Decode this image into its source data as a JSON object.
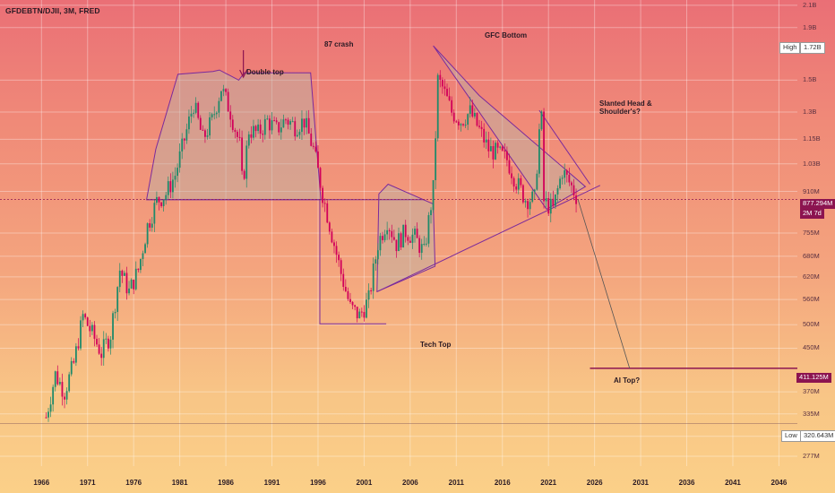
{
  "header": {
    "symbol_line": "GFDEBTN/DJII, 3M, FRED"
  },
  "annotations": {
    "double_top": "Double top",
    "crash_87": "87 crash",
    "gfc_bottom": "GFC Bottom",
    "slanted_line1": "Slanted Head &",
    "slanted_line2": "Shoulder's?",
    "tech_top": "Tech Top",
    "ai_top": "AI Top?"
  },
  "price_labels": {
    "high_label": "High",
    "high_value": "1.72B",
    "current_value": "877.294M",
    "current_countdown": "2M 7d",
    "target_value": "411.125M",
    "low_label": "Low",
    "low_value": "320.643M"
  },
  "colors": {
    "candle_up": "#1f8a6a",
    "candle_down": "#d1005a",
    "pattern_line": "#7b2a9c",
    "target_line": "#8c1450"
  },
  "chart_data": {
    "type": "candlestick",
    "title": "GFDEBTN/DJII, 3M, FRED",
    "y_scale": "log",
    "ylim": [
      265000000,
      2150000000
    ],
    "xlim": [
      1961.5,
      2048
    ],
    "x_ticks": [
      "1966",
      "1971",
      "1976",
      "1981",
      "1986",
      "1991",
      "1996",
      "2001",
      "2006",
      "2011",
      "2016",
      "2021",
      "2026",
      "2031",
      "2036",
      "2041",
      "2046"
    ],
    "y_ticks": [
      {
        "label": "2.1B",
        "value": 2100000000
      },
      {
        "label": "1.9B",
        "value": 1900000000
      },
      {
        "label": "1.5B",
        "value": 1500000000
      },
      {
        "label": "1.3B",
        "value": 1300000000
      },
      {
        "label": "1.15B",
        "value": 1150000000
      },
      {
        "label": "1.03B",
        "value": 1030000000
      },
      {
        "label": "910M",
        "value": 910000000
      },
      {
        "label": "755M",
        "value": 755000000
      },
      {
        "label": "680M",
        "value": 680000000
      },
      {
        "label": "620M",
        "value": 620000000
      },
      {
        "label": "560M",
        "value": 560000000
      },
      {
        "label": "500M",
        "value": 500000000
      },
      {
        "label": "450M",
        "value": 450000000
      },
      {
        "label": "370M",
        "value": 370000000
      },
      {
        "label": "335M",
        "value": 335000000
      },
      {
        "label": "303M",
        "value": 303000000
      },
      {
        "label": "277M",
        "value": 277000000
      }
    ],
    "series_approx": [
      [
        1966.5,
        330000000
      ],
      [
        1967.5,
        400000000
      ],
      [
        1968.5,
        370000000
      ],
      [
        1969.5,
        420000000
      ],
      [
        1970.5,
        520000000
      ],
      [
        1971.5,
        480000000
      ],
      [
        1972.5,
        440000000
      ],
      [
        1973.5,
        480000000
      ],
      [
        1974.5,
        640000000
      ],
      [
        1975.5,
        580000000
      ],
      [
        1976.5,
        640000000
      ],
      [
        1977.5,
        780000000
      ],
      [
        1978.5,
        870000000
      ],
      [
        1979.5,
        900000000
      ],
      [
        1980.5,
        980000000
      ],
      [
        1981.5,
        1150000000
      ],
      [
        1982.5,
        1350000000
      ],
      [
        1983.5,
        1150000000
      ],
      [
        1984.5,
        1250000000
      ],
      [
        1985.5,
        1450000000
      ],
      [
        1986.5,
        1300000000
      ],
      [
        1987.5,
        1120000000
      ],
      [
        1987.8,
        930000000
      ],
      [
        1988.5,
        1200000000
      ],
      [
        1989.5,
        1180000000
      ],
      [
        1990.5,
        1250000000
      ],
      [
        1991.5,
        1200000000
      ],
      [
        1992.5,
        1260000000
      ],
      [
        1993.5,
        1220000000
      ],
      [
        1994.5,
        1250000000
      ],
      [
        1995.5,
        1100000000
      ],
      [
        1996.5,
        900000000
      ],
      [
        1997.5,
        750000000
      ],
      [
        1998.5,
        630000000
      ],
      [
        1999.5,
        540000000
      ],
      [
        2000.5,
        520000000
      ],
      [
        2001.5,
        560000000
      ],
      [
        2002.5,
        720000000
      ],
      [
        2003.5,
        800000000
      ],
      [
        2004.5,
        720000000
      ],
      [
        2005.5,
        760000000
      ],
      [
        2006.5,
        740000000
      ],
      [
        2007.5,
        690000000
      ],
      [
        2008.5,
        920000000
      ],
      [
        2009.0,
        1500000000
      ],
      [
        2009.5,
        1450000000
      ],
      [
        2010.5,
        1300000000
      ],
      [
        2011.5,
        1250000000
      ],
      [
        2012.5,
        1300000000
      ],
      [
        2013.5,
        1200000000
      ],
      [
        2014.5,
        1100000000
      ],
      [
        2015.5,
        1080000000
      ],
      [
        2016.5,
        1050000000
      ],
      [
        2017.5,
        950000000
      ],
      [
        2018.5,
        880000000
      ],
      [
        2019.5,
        880000000
      ],
      [
        2020.2,
        1350000000
      ],
      [
        2020.5,
        870000000
      ],
      [
        2021.5,
        840000000
      ],
      [
        2022.5,
        1000000000
      ],
      [
        2023.5,
        930000000
      ],
      [
        2024.2,
        877294000
      ]
    ],
    "projection": [
      [
        2024.2,
        877294000
      ],
      [
        2029.8,
        411125000
      ]
    ],
    "levels": [
      {
        "name": "High",
        "value": 1720000000
      },
      {
        "name": "Current",
        "value": 877294000
      },
      {
        "name": "AI Top target",
        "value": 411125000
      },
      {
        "name": "Low",
        "value": 320643000
      }
    ],
    "patterns": {
      "double_top": [
        [
          1977.4,
          877000000
        ],
        [
          1978.4,
          1100000000
        ],
        [
          1980.8,
          1540000000
        ],
        [
          1984.6,
          1560000000
        ],
        [
          1985.3,
          1570000000
        ],
        [
          1987.4,
          1500000000
        ],
        [
          1988,
          1550000000
        ],
        [
          1995.2,
          1550000000
        ],
        [
          1996.3,
          877000000
        ],
        [
          1977.4,
          877000000
        ]
      ],
      "tech_top_box": [
        [
          1996.2,
          877000000
        ],
        [
          1996.2,
          502000000
        ],
        [
          2003.4,
          502000000
        ]
      ],
      "triangle_2001": [
        [
          2002.4,
          580000000
        ],
        [
          2002.6,
          900000000
        ],
        [
          2003.6,
          940000000
        ],
        [
          2008.5,
          860000000
        ],
        [
          2008.7,
          650000000
        ]
      ],
      "gfc_triangle": [
        [
          2008.5,
          1750000000
        ],
        [
          2013.5,
          1400000000
        ],
        [
          2025,
          930000000
        ],
        [
          2020.8,
          840000000
        ]
      ],
      "neckline_hist": [
        [
          1977.4,
          877000000
        ],
        [
          2007.6,
          877000000
        ]
      ],
      "rising_support": [
        [
          2002.4,
          580000000
        ],
        [
          2026.6,
          935000000
        ]
      ],
      "slanted_hs": [
        [
          2020,
          1310000000
        ],
        [
          2025.5,
          940000000
        ]
      ]
    }
  }
}
